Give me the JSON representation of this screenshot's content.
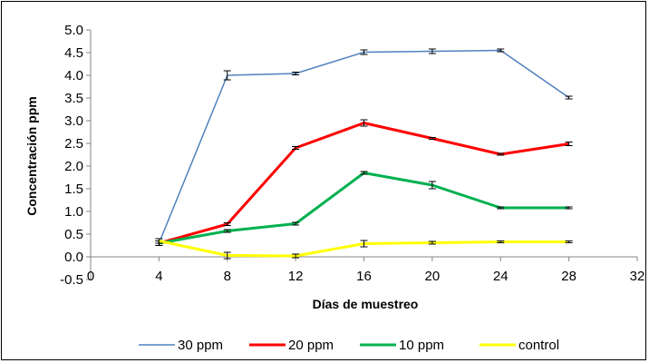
{
  "chart_data": {
    "type": "line",
    "title": "",
    "xlabel": "Días de muestreo",
    "ylabel": "Concentración ppm",
    "xlim": [
      0,
      32
    ],
    "ylim": [
      -0.5,
      5.0
    ],
    "x_ticks": [
      0,
      4,
      8,
      12,
      16,
      20,
      24,
      28,
      32
    ],
    "y_ticks": [
      -0.5,
      0.0,
      0.5,
      1.0,
      1.5,
      2.0,
      2.5,
      3.0,
      3.5,
      4.0,
      4.5,
      5.0
    ],
    "x_tick_labels": [
      "0",
      "4",
      "8",
      "12",
      "16",
      "20",
      "24",
      "28",
      "32"
    ],
    "y_tick_labels": [
      "-0.5",
      "0.0",
      "0.5",
      "1.0",
      "1.5",
      "2.0",
      "2.5",
      "3.0",
      "3.5",
      "4.0",
      "4.5",
      "5.0"
    ],
    "grid": false,
    "legend_position": "bottom",
    "x": [
      4,
      8,
      12,
      16,
      20,
      24,
      28
    ],
    "series": [
      {
        "name": "30 ppm",
        "color": "#4f81bd",
        "values": [
          0.3,
          4.0,
          4.04,
          4.51,
          4.53,
          4.55,
          3.51
        ],
        "errors": [
          0.05,
          0.1,
          0.03,
          0.05,
          0.05,
          0.03,
          0.03
        ]
      },
      {
        "name": "20 ppm",
        "color": "#ff0000",
        "values": [
          0.3,
          0.72,
          2.4,
          2.95,
          2.61,
          2.26,
          2.49
        ],
        "errors": [
          0.05,
          0.03,
          0.03,
          0.07,
          0.02,
          0.02,
          0.04
        ]
      },
      {
        "name": "10 ppm",
        "color": "#00b050",
        "values": [
          0.3,
          0.57,
          0.73,
          1.85,
          1.58,
          1.08,
          1.08
        ],
        "errors": [
          0.05,
          0.03,
          0.03,
          0.03,
          0.08,
          0.02,
          0.02
        ]
      },
      {
        "name": "control",
        "color": "#ffff00",
        "values": [
          0.35,
          0.03,
          0.02,
          0.29,
          0.31,
          0.33,
          0.33
        ],
        "errors": [
          0.05,
          0.07,
          0.04,
          0.07,
          0.03,
          0.02,
          0.02
        ]
      }
    ]
  }
}
